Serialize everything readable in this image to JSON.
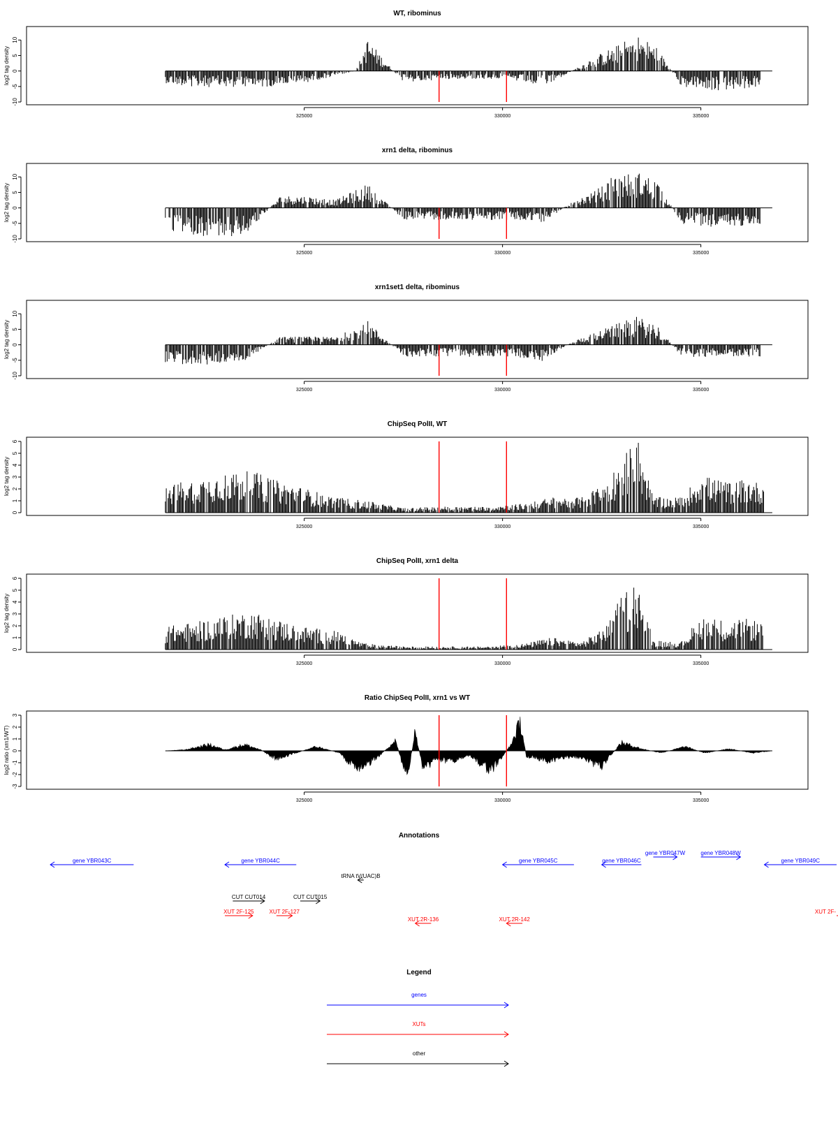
{
  "colors": {
    "genes": "#0000ff",
    "xuts": "#ff0000",
    "other": "#000000",
    "marker": "#ff0000",
    "signal": "#000000"
  },
  "x_tick_labels": [
    "325000",
    "330000",
    "335000"
  ],
  "chart_data": [
    {
      "type": "bar",
      "title": "WT, ribominus",
      "ylabel": "log2 tag density",
      "ylim": [
        -10,
        13
      ],
      "yticks": [
        -10,
        -5,
        0,
        5,
        10
      ],
      "xlim": [
        318000,
        337700
      ],
      "xticks": [
        325000,
        330000,
        335000
      ],
      "grid": false,
      "markers": [
        328400,
        330100
      ],
      "series": [
        {
          "x": [
            321500,
            322200,
            324000,
            325000,
            326300,
            326600,
            327500,
            328500,
            330100,
            331000,
            331600,
            332200,
            332800,
            333400,
            333900,
            334500,
            335500,
            336500
          ],
          "values": [
            -3,
            -4,
            -4,
            -3,
            0,
            8,
            -3,
            -2,
            -2,
            -4,
            -1,
            3,
            6,
            9,
            6,
            -4,
            -5,
            -4
          ]
        }
      ]
    },
    {
      "type": "bar",
      "title": "xrn1 delta, ribominus",
      "ylabel": "log2 tag density",
      "ylim": [
        -10,
        13
      ],
      "yticks": [
        -10,
        -5,
        0,
        5,
        10
      ],
      "xlim": [
        318000,
        337700
      ],
      "xticks": [
        325000,
        330000,
        335000
      ],
      "grid": false,
      "markers": [
        328400,
        330100
      ],
      "series": [
        {
          "x": [
            321500,
            322500,
            323500,
            324400,
            325000,
            325800,
            326600,
            327500,
            328500,
            329500,
            330300,
            331000,
            331800,
            332300,
            332800,
            333400,
            333900,
            334500,
            335500,
            336500
          ],
          "values": [
            -6,
            -7,
            -7,
            3,
            3,
            2,
            6,
            -3,
            -3,
            -3,
            -3,
            -4,
            2,
            4,
            8,
            9,
            7,
            -4,
            -5,
            -4
          ]
        }
      ]
    },
    {
      "type": "bar",
      "title": "xrn1set1 delta, ribominus",
      "ylabel": "log2 tag density",
      "ylim": [
        -10,
        13
      ],
      "yticks": [
        -10,
        -5,
        0,
        5,
        10
      ],
      "xlim": [
        318000,
        337700
      ],
      "xticks": [
        325000,
        330000,
        335000
      ],
      "grid": false,
      "markers": [
        328400,
        330100
      ],
      "series": [
        {
          "x": [
            321500,
            322500,
            323500,
            324400,
            325000,
            325800,
            326600,
            327500,
            328500,
            329500,
            330300,
            331000,
            331800,
            332300,
            332800,
            333400,
            333900,
            334500,
            335500,
            336500
          ],
          "values": [
            -5,
            -5,
            -4,
            2,
            2,
            2,
            6,
            -3,
            -3,
            -3,
            -3,
            -4,
            1,
            3,
            5,
            7,
            5,
            -3,
            -3,
            -3
          ]
        }
      ]
    },
    {
      "type": "bar",
      "title": "ChipSeq PolII, WT",
      "ylabel": "log2 tag density",
      "ylim": [
        0,
        6
      ],
      "yticks": [
        0,
        1,
        2,
        3,
        4,
        5,
        6
      ],
      "xlim": [
        318000,
        337700
      ],
      "xticks": [
        325000,
        330000,
        335000
      ],
      "grid": false,
      "markers": [
        328400,
        330100
      ],
      "series": [
        {
          "x": [
            321500,
            322300,
            323000,
            323700,
            324400,
            325000,
            325800,
            326500,
            327500,
            328500,
            329500,
            330600,
            331200,
            332000,
            332600,
            333000,
            333400,
            333800,
            334500,
            335000,
            335600,
            336200,
            336600
          ],
          "values": [
            1.8,
            2.2,
            2.6,
            2.7,
            2.0,
            1.6,
            1.0,
            0.8,
            0.3,
            0.4,
            0.4,
            0.6,
            1.0,
            1.0,
            2.0,
            3.5,
            5.0,
            1.0,
            1.0,
            2.5,
            2.0,
            2.2,
            1.8
          ]
        }
      ]
    },
    {
      "type": "bar",
      "title": "ChipSeq PolII, xrn1 delta",
      "ylabel": "log2 tag density",
      "ylim": [
        0,
        6
      ],
      "yticks": [
        0,
        1,
        2,
        3,
        4,
        5,
        6
      ],
      "xlim": [
        318000,
        337700
      ],
      "xticks": [
        325000,
        330000,
        335000
      ],
      "grid": false,
      "markers": [
        328400,
        330100
      ],
      "series": [
        {
          "x": [
            321500,
            322300,
            323000,
            323700,
            324400,
            325000,
            325800,
            326500,
            327500,
            328500,
            329500,
            330600,
            331200,
            332000,
            332600,
            333000,
            333400,
            333800,
            334500,
            335000,
            335600,
            336200,
            336600
          ],
          "values": [
            1.5,
            1.8,
            2.2,
            2.5,
            1.9,
            1.5,
            1.2,
            0.4,
            0.2,
            0.2,
            0.2,
            0.4,
            0.8,
            0.5,
            1.5,
            3.5,
            4.8,
            0.6,
            0.5,
            2.2,
            1.9,
            2.0,
            1.8
          ]
        }
      ]
    },
    {
      "type": "area",
      "title": "Ratio ChipSeq PolII, xrn1 vs WT",
      "ylabel": "log2 ratio (xrn1/WT)",
      "ylim": [
        -3,
        3
      ],
      "yticks": [
        -3,
        -2,
        -1,
        0,
        1,
        2,
        3
      ],
      "xlim": [
        318000,
        337700
      ],
      "xticks": [
        325000,
        330000,
        335000
      ],
      "grid": false,
      "markers": [
        328400,
        330100
      ],
      "series": [
        {
          "x": [
            321500,
            322000,
            322600,
            323000,
            323500,
            323900,
            324300,
            324700,
            325300,
            325900,
            326300,
            326800,
            327300,
            327600,
            327800,
            328000,
            328300,
            328700,
            329200,
            329700,
            330000,
            330200,
            330450,
            330600,
            331200,
            331800,
            332500,
            333000,
            333500,
            334000,
            334600,
            335100,
            335700,
            336300,
            336800
          ],
          "values": [
            0.0,
            0.1,
            0.6,
            0.1,
            0.6,
            0.1,
            -0.8,
            -0.3,
            0.4,
            -0.2,
            -1.8,
            -0.8,
            1.0,
            -2.8,
            2.0,
            -2.0,
            -0.8,
            -1.0,
            -0.5,
            -2.0,
            -0.5,
            0.5,
            2.8,
            -0.5,
            -1.0,
            -0.5,
            -1.5,
            0.8,
            0.2,
            -0.2,
            0.4,
            -0.2,
            0.2,
            -0.2,
            0.0
          ]
        }
      ]
    }
  ],
  "annotations": {
    "title": "Annotations",
    "features": [
      {
        "label": "gene YBR043C",
        "start": 318600,
        "end": 320700,
        "strand": "-",
        "kind": "genes",
        "row": 0
      },
      {
        "label": "gene YBR044C",
        "start": 323000,
        "end": 324800,
        "strand": "-",
        "kind": "genes",
        "row": 0
      },
      {
        "label": "gene YBR045C",
        "start": 330000,
        "end": 331800,
        "strand": "-",
        "kind": "genes",
        "row": 0
      },
      {
        "label": "gene YBR046C",
        "start": 332500,
        "end": 333500,
        "strand": "-",
        "kind": "genes",
        "row": 0
      },
      {
        "label": "gene YBR047W",
        "start": 333800,
        "end": 334400,
        "strand": "+",
        "kind": "genes",
        "row": -1
      },
      {
        "label": "gene YBR048W",
        "start": 335000,
        "end": 336000,
        "strand": "+",
        "kind": "genes",
        "row": -1
      },
      {
        "label": "gene YBR049C",
        "start": 336600,
        "end": 339000,
        "strand": "-",
        "kind": "genes",
        "row": 0
      },
      {
        "label": "tRNA tV(UAC)B",
        "start": 326350,
        "end": 326500,
        "strand": "-",
        "kind": "other",
        "row": 1
      },
      {
        "label": "CUT CUT014",
        "start": 323200,
        "end": 324000,
        "strand": "+",
        "kind": "other",
        "row": 2
      },
      {
        "label": "CUT CUT015",
        "start": 324900,
        "end": 325400,
        "strand": "+",
        "kind": "other",
        "row": 2
      },
      {
        "label": "XUT 2F-125",
        "start": 323000,
        "end": 323700,
        "strand": "+",
        "kind": "xuts",
        "row": 3
      },
      {
        "label": "XUT 2F-127",
        "start": 324300,
        "end": 324700,
        "strand": "+",
        "kind": "xuts",
        "row": 3
      },
      {
        "label": "XUT 2R-136",
        "start": 327800,
        "end": 328200,
        "strand": "-",
        "kind": "xuts",
        "row": 4
      },
      {
        "label": "XUT 2R-142",
        "start": 330100,
        "end": 330500,
        "strand": "-",
        "kind": "xuts",
        "row": 4
      },
      {
        "label": "XUT 2F-",
        "start": 339200,
        "end": 340000,
        "strand": "+",
        "kind": "xuts",
        "row": 3
      }
    ]
  },
  "legend": {
    "title": "Legend",
    "items": [
      {
        "label": "genes",
        "kind": "genes"
      },
      {
        "label": "XUTs",
        "kind": "xuts"
      },
      {
        "label": "other",
        "kind": "other"
      }
    ]
  }
}
